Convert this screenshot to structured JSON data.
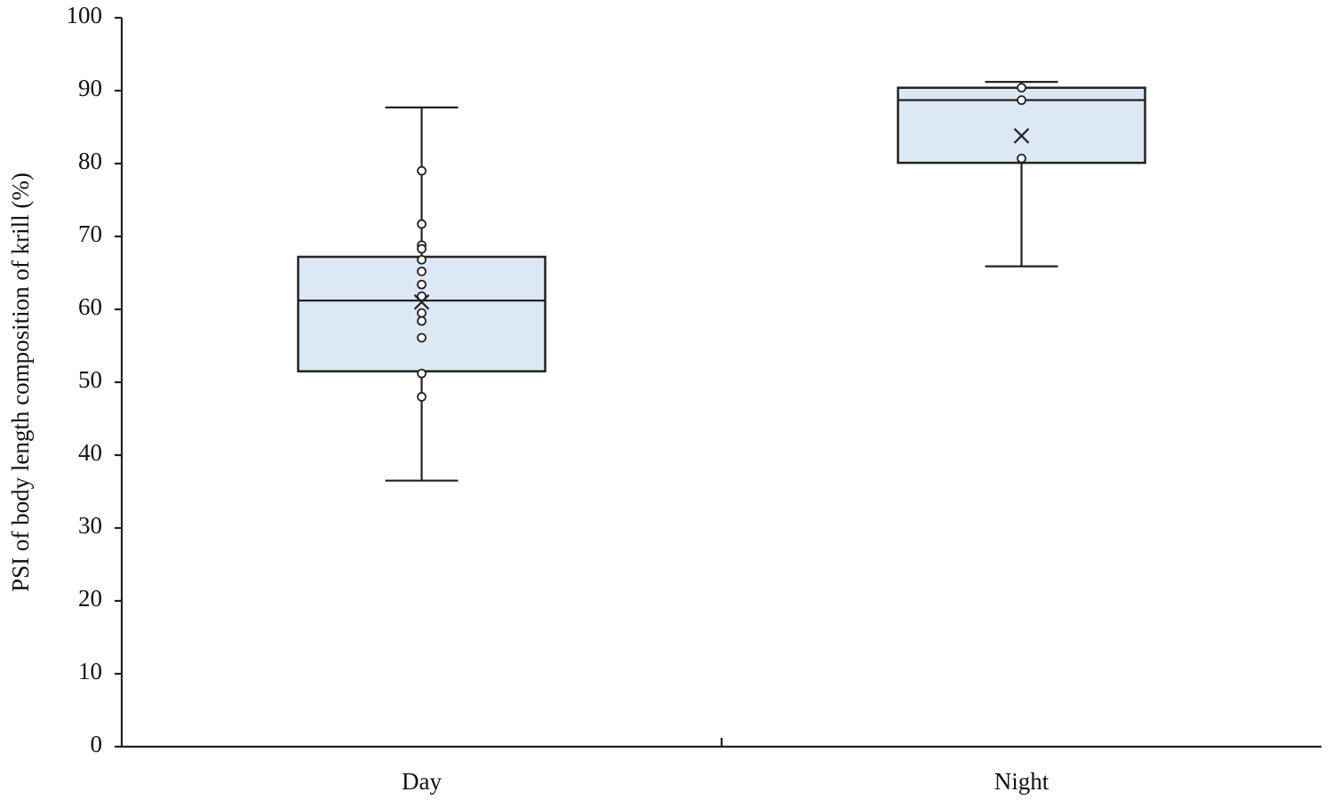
{
  "chart_data": {
    "type": "box",
    "ylabel": "PSI of body length composition of krill  (%)",
    "categories": [
      "Day",
      "Night"
    ],
    "box_color": "#dde8f5",
    "boxes": [
      {
        "min": 36.5,
        "q1": 51.5,
        "median": 61.2,
        "q3": 67.2,
        "max": 87.7,
        "mean": 61.0,
        "points": [
          79.0,
          71.7,
          68.8,
          68.3,
          66.8,
          65.2,
          63.4,
          61.8,
          59.5,
          58.4,
          56.1,
          51.2,
          48.0
        ]
      },
      {
        "min": 65.9,
        "q1": 80.1,
        "median": 88.7,
        "q3": 90.4,
        "max": 91.2,
        "mean": 83.8,
        "points": [
          90.4,
          88.7,
          80.7
        ]
      }
    ],
    "ylim": [
      0,
      100
    ],
    "yticks": [
      0,
      10,
      20,
      30,
      40,
      50,
      60,
      70,
      80,
      90,
      100
    ]
  }
}
